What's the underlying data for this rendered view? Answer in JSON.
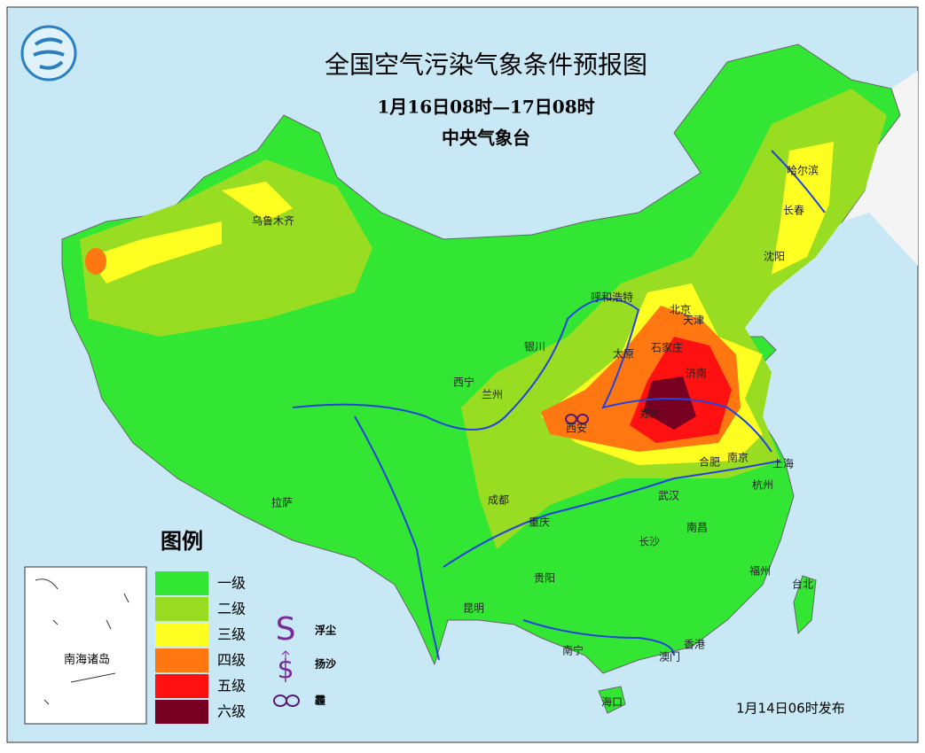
{
  "header": {
    "title": "全国空气污染气象条件预报图",
    "period": "1月16日08时—17日08时",
    "issuer": "中央气象台"
  },
  "legend": {
    "title": "图例",
    "levels": [
      {
        "label": "一级",
        "color": "#33e633"
      },
      {
        "label": "二级",
        "color": "#99dd22"
      },
      {
        "label": "三级",
        "color": "#ffff22"
      },
      {
        "label": "四级",
        "color": "#ff7711"
      },
      {
        "label": "五级",
        "color": "#ff1111"
      },
      {
        "label": "六级",
        "color": "#770022"
      }
    ],
    "symbols": [
      "浮尘",
      "扬沙",
      "霾"
    ]
  },
  "inset": {
    "label": "南海诸岛"
  },
  "cities": [
    "乌鲁木齐",
    "哈尔滨",
    "长春",
    "沈阳",
    "呼和浩特",
    "北京",
    "天津",
    "银川",
    "太原",
    "石家庄",
    "济南",
    "西宁",
    "兰州",
    "郑州",
    "西安",
    "合肥",
    "南京",
    "上海",
    "拉萨",
    "成都",
    "武汉",
    "杭州",
    "重庆",
    "长沙",
    "南昌",
    "福州",
    "贵阳",
    "台北",
    "昆明",
    "南宁",
    "香港",
    "澳门",
    "海口"
  ],
  "footer": "1月14日06时发布"
}
